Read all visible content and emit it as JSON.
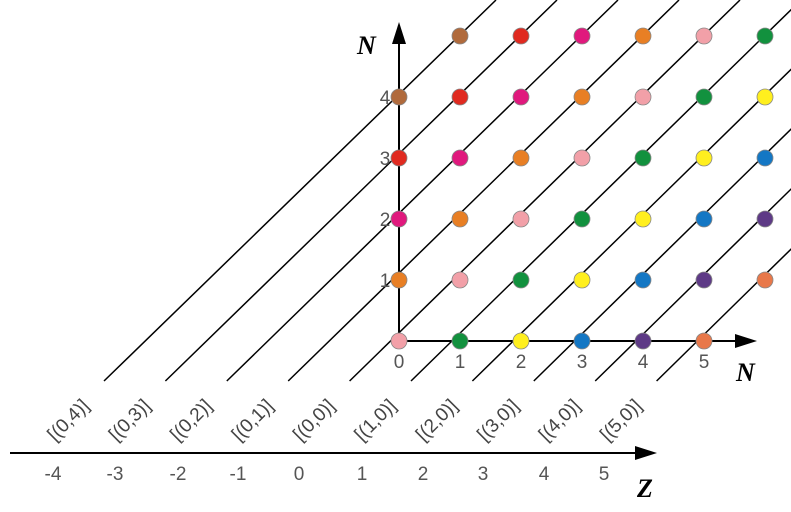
{
  "axes": {
    "vertical_label": "N",
    "horizontal_label": "N",
    "z_label": "Z"
  },
  "grid": {
    "n_ticks": [
      "0",
      "1",
      "2",
      "3",
      "4",
      "5"
    ],
    "vertical_ticks": [
      "1",
      "2",
      "3",
      "4"
    ],
    "z_ticks": [
      "-4",
      "-3",
      "-2",
      "-1",
      "0",
      "1",
      "2",
      "3",
      "4",
      "5"
    ],
    "z_values": [
      -4,
      -3,
      -2,
      -1,
      0,
      1,
      2,
      3,
      4,
      5
    ]
  },
  "classes": [
    {
      "label": "[(0,4)]",
      "z": -4
    },
    {
      "label": "[(0,3)]",
      "z": -3
    },
    {
      "label": "[(0,2)]",
      "z": -2
    },
    {
      "label": "[(0,1)]",
      "z": -1
    },
    {
      "label": "[(0,0)]",
      "z": 0
    },
    {
      "label": "[(1,0)]",
      "z": 1
    },
    {
      "label": "[(2,0)]",
      "z": 2
    },
    {
      "label": "[(3,0)]",
      "z": 3
    },
    {
      "label": "[(4,0)]",
      "z": 4
    },
    {
      "label": "[(5,0)]",
      "z": 5
    }
  ],
  "colors": {
    "a_plus_b": [
      "#f2a0a8",
      "#e87f24",
      "#e0197d",
      "#e02a20",
      "#b06a3c"
    ],
    "a_minus_b": {
      "1": "#12913e",
      "2": "#ffef1e",
      "3": "#1477c4",
      "4": "#5e3a86",
      "5": "#e8784a"
    },
    "dot_stroke": "#888888",
    "line": "#000000"
  }
}
